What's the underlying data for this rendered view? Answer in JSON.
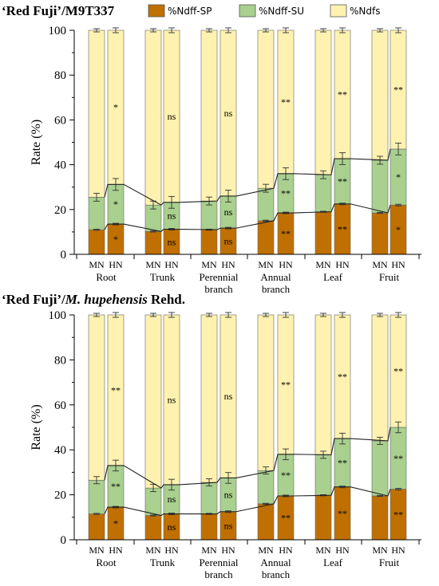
{
  "legend": [
    {
      "label": "%Ndff-SP",
      "color": "#c07000"
    },
    {
      "label": "%Ndff-SU",
      "color": "#a9d08e"
    },
    {
      "label": "%Ndfs",
      "color": "#fff2b0"
    }
  ],
  "chart_data": [
    {
      "type": "bar",
      "stacked": true,
      "title_parts": [
        {
          "text": "‘Red Fuji’/M9T337",
          "italic": false
        }
      ],
      "ylabel": "Rate (%)",
      "ylim": [
        0,
        100
      ],
      "yticks": [
        0,
        20,
        40,
        60,
        80,
        100
      ],
      "bar_labels": [
        "MN",
        "HN"
      ],
      "groups": [
        "Root",
        "Trunk",
        "Perennial branch",
        "Annual branch",
        "Leaf",
        "Fruit"
      ],
      "series": [
        {
          "name": "%Ndff-SP",
          "color": "#c07000",
          "values": [
            11,
            13.5,
            10.2,
            11.2,
            11,
            11.7,
            15,
            18.5,
            19,
            22.5,
            18.5,
            22
          ]
        },
        {
          "name": "%Ndff-SU",
          "color": "#a9d08e",
          "values": [
            14.5,
            17.7,
            11.8,
            12,
            12.8,
            14.3,
            14.5,
            17.5,
            16.5,
            20.2,
            23.5,
            25
          ]
        },
        {
          "name": "%Ndfs",
          "color": "#fff2b0",
          "values": [
            74.5,
            68.8,
            78,
            76.8,
            76.2,
            74,
            70.5,
            64,
            64.5,
            57.3,
            58,
            53
          ]
        }
      ],
      "annotations": {
        "sp": [
          "",
          "*",
          "",
          "ns",
          "",
          "ns",
          "",
          "**",
          "",
          "**",
          "",
          "*"
        ],
        "su": [
          "",
          "*",
          "",
          "ns",
          "",
          "ns",
          "",
          "**",
          "",
          "**",
          "",
          "*"
        ],
        "dfs": [
          "",
          "*",
          "",
          "ns",
          "",
          "ns",
          "",
          "**",
          "",
          "**",
          "",
          "**"
        ]
      }
    },
    {
      "type": "bar",
      "stacked": true,
      "title_parts": [
        {
          "text": "‘Red Fuji’/",
          "italic": false
        },
        {
          "text": "M. hupehensis",
          "italic": true
        },
        {
          "text": " Rehd.",
          "italic": false
        }
      ],
      "ylabel": "Rate (%)",
      "ylim": [
        0,
        100
      ],
      "yticks": [
        0,
        20,
        40,
        60,
        80,
        100
      ],
      "bar_labels": [
        "MN",
        "HN"
      ],
      "groups": [
        "Root",
        "Trunk",
        "Perennial branch",
        "Annual branch",
        "Leaf",
        "Fruit"
      ],
      "series": [
        {
          "name": "%Ndff-SP",
          "color": "#c07000",
          "values": [
            11.5,
            14.5,
            10.8,
            11.5,
            11.5,
            12.5,
            16,
            19.5,
            19.8,
            23.5,
            19.5,
            22.5
          ]
        },
        {
          "name": "%Ndff-SU",
          "color": "#a9d08e",
          "values": [
            15,
            18.5,
            12.2,
            13,
            14,
            15,
            14.8,
            18.5,
            18,
            21.5,
            24.5,
            27.5
          ]
        },
        {
          "name": "%Ndfs",
          "color": "#fff2b0",
          "values": [
            73.5,
            67,
            77,
            75.5,
            74.5,
            72.5,
            69.2,
            62,
            62.2,
            55,
            56,
            50
          ]
        }
      ],
      "annotations": {
        "sp": [
          "",
          "*",
          "",
          "ns",
          "",
          "ns",
          "",
          "**",
          "",
          "**",
          "",
          "**"
        ],
        "su": [
          "",
          "**",
          "",
          "ns",
          "",
          "ns",
          "",
          "**",
          "",
          "**",
          "",
          "**"
        ],
        "dfs": [
          "",
          "**",
          "",
          "ns",
          "",
          "ns",
          "",
          "**",
          "",
          "**",
          "",
          "**"
        ]
      }
    }
  ]
}
